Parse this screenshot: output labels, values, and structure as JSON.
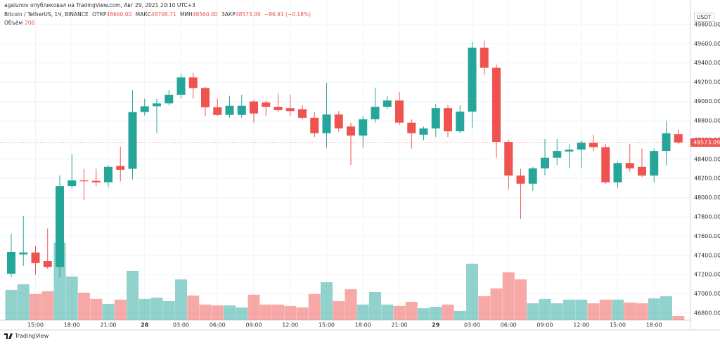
{
  "chart_data": {
    "type": "candlestick",
    "attribution": "agalunov опубликовал на TradingView.com, Авг 29, 2021 20:10 UTC+3",
    "legend": {
      "symbol": "Bitcoin / TetherUS, 1Ч, BINANCE",
      "open_label": "ОТКР",
      "open": "48660.00",
      "high_label": "МАКС",
      "high": "48708.71",
      "low_label": "МИН",
      "low": "48560.00",
      "close_label": "ЗАКР",
      "close": "48573.09",
      "change": "−86.91 (−0.18%)",
      "volume_label": "Объём",
      "volume": "206"
    },
    "currency": "USDT",
    "brand": "TradingView",
    "up_color": "#26a69a",
    "down_color": "#ef5350",
    "grid": true,
    "categories": [
      null,
      null,
      "15:00",
      null,
      null,
      "18:00",
      null,
      null,
      "21:00",
      null,
      null,
      "28",
      null,
      null,
      "03:00",
      null,
      null,
      "06:00",
      null,
      null,
      "09:00",
      null,
      null,
      "12:00",
      null,
      null,
      "15:00",
      null,
      null,
      "18:00",
      null,
      null,
      "21:00",
      null,
      null,
      "29",
      null,
      null,
      "03:00",
      null,
      null,
      "06:00",
      null,
      null,
      "09:00",
      null,
      null,
      "12:00",
      null,
      null,
      "15:00",
      null,
      null,
      "18:00",
      null,
      null
    ],
    "open": [
      47210,
      47410,
      47430,
      47340,
      47280,
      48120,
      48180,
      48175,
      48160,
      48330,
      48300,
      48890,
      48950,
      48980,
      49070,
      49250,
      49140,
      48940,
      48860,
      48860,
      49000,
      48990,
      48945,
      48930,
      48920,
      48830,
      48670,
      48865,
      48740,
      48645,
      48815,
      48945,
      49010,
      48780,
      48655,
      48720,
      48930,
      48690,
      48895,
      49560,
      49350,
      48580,
      48230,
      48145,
      48305,
      48415,
      48480,
      48500,
      48570,
      48525,
      48160,
      48360,
      48320,
      48230,
      48485,
      48660
    ],
    "high": [
      47625,
      47810,
      47500,
      47680,
      48230,
      48450,
      48300,
      48300,
      48335,
      48530,
      49120,
      49030,
      49030,
      49120,
      49290,
      49300,
      49150,
      49030,
      49060,
      49070,
      49020,
      49010,
      49080,
      49070,
      48960,
      48890,
      49195,
      48900,
      48780,
      48850,
      49145,
      49055,
      49100,
      48815,
      48740,
      48975,
      48960,
      48960,
      49620,
      49630,
      49385,
      48595,
      48300,
      48320,
      48610,
      48610,
      48560,
      48595,
      48655,
      48560,
      48375,
      48560,
      48510,
      48510,
      48800,
      48708.71
    ],
    "low": [
      47170,
      47290,
      47200,
      47260,
      47170,
      48100,
      47975,
      48120,
      48110,
      48170,
      48190,
      48855,
      48670,
      48960,
      49030,
      49030,
      48850,
      48850,
      48830,
      48830,
      48780,
      48850,
      48890,
      48850,
      48815,
      48630,
      48520,
      48685,
      48340,
      48520,
      48780,
      48925,
      48755,
      48510,
      48595,
      48630,
      48630,
      48670,
      48725,
      49275,
      48415,
      48085,
      47780,
      48070,
      48230,
      48340,
      48305,
      48305,
      48485,
      48145,
      48100,
      48270,
      48215,
      48160,
      48335,
      48560
    ],
    "close": [
      47435,
      47430,
      47320,
      47280,
      48120,
      48180,
      48170,
      48160,
      48320,
      48290,
      48890,
      48950,
      48980,
      49070,
      49250,
      49140,
      48940,
      48860,
      48955,
      48955,
      48875,
      48945,
      48910,
      48900,
      48830,
      48670,
      48865,
      48720,
      48645,
      48815,
      48945,
      49010,
      48780,
      48670,
      48720,
      48930,
      48690,
      48895,
      49560,
      49350,
      48580,
      48230,
      48145,
      48305,
      48415,
      48485,
      48500,
      48570,
      48525,
      48160,
      48360,
      48305,
      48230,
      48485,
      48670,
      48573.09
    ],
    "volume": [
      1475,
      1750,
      1270,
      1410,
      3780,
      2130,
      1340,
      1030,
      790,
      1000,
      2400,
      1030,
      1100,
      930,
      1990,
      1200,
      760,
      720,
      720,
      620,
      1240,
      760,
      760,
      690,
      620,
      1270,
      1850,
      930,
      1510,
      760,
      1370,
      760,
      690,
      890,
      580,
      650,
      760,
      450,
      2750,
      1170,
      1550,
      2330,
      1990,
      820,
      1030,
      820,
      1000,
      1000,
      820,
      1000,
      1000,
      860,
      820,
      1060,
      1170,
      206
    ],
    "ylim": [
      46727,
      50055
    ],
    "volume_ylim": [
      0,
      5000
    ],
    "yticks": [
      {
        "value": 46800,
        "label": "46800.00"
      },
      {
        "value": 47000,
        "label": "47000.00"
      },
      {
        "value": 47200,
        "label": "47200.00"
      },
      {
        "value": 47400,
        "label": "47400.00"
      },
      {
        "value": 47600,
        "label": "47600.00"
      },
      {
        "value": 47800,
        "label": "47800.00"
      },
      {
        "value": 48000,
        "label": "48000.00"
      },
      {
        "value": 48200,
        "label": "48200.00"
      },
      {
        "value": 48400,
        "label": "48400.00"
      },
      {
        "value": 48600,
        "label": "48600.00"
      },
      {
        "value": 48800,
        "label": "48800.00"
      },
      {
        "value": 49000,
        "label": "49000.00"
      },
      {
        "value": 49200,
        "label": "49200.00"
      },
      {
        "value": 49400,
        "label": "49400.00"
      },
      {
        "value": 49600,
        "label": "49600.00"
      },
      {
        "value": 49800,
        "label": "49800.00"
      }
    ]
  }
}
